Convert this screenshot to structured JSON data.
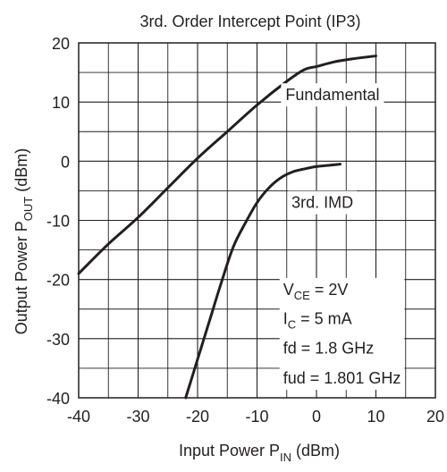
{
  "chart_data": {
    "type": "line",
    "title": "3rd. Order Intercept Point (IP3)",
    "xlabel": {
      "main": "Input Power   P",
      "sub": "IN",
      "unit": " (dBm)"
    },
    "ylabel": {
      "main": "Output Power   P",
      "sub": "OUT",
      "unit": " (dBm)"
    },
    "xlim": [
      -40,
      20
    ],
    "ylim": [
      -40,
      20
    ],
    "x_ticks": [
      -40,
      -30,
      -20,
      -10,
      0,
      10,
      20
    ],
    "y_ticks": [
      -40,
      -30,
      -20,
      -10,
      0,
      10,
      20
    ],
    "x_tick_labels": [
      "-40",
      "-30",
      "-20",
      "-10",
      "0",
      "10",
      "20"
    ],
    "y_tick_labels": [
      "-40",
      "-30",
      "-20",
      "-10",
      "0",
      "10",
      "20"
    ],
    "grid": true,
    "series": [
      {
        "name": "Fundamental",
        "x": [
          -40,
          -35,
          -30,
          -25,
          -20,
          -15,
          -10,
          -5,
          -2,
          0,
          3,
          6,
          10
        ],
        "y": [
          -19,
          -14,
          -9.5,
          -4.5,
          0.5,
          5,
          9.5,
          13.5,
          15.5,
          16,
          16.8,
          17.3,
          17.8
        ]
      },
      {
        "name": "3rd. IMD",
        "x": [
          -22,
          -20,
          -18,
          -16,
          -14,
          -12,
          -10,
          -8,
          -6,
          -4,
          -2,
          0,
          2,
          4
        ],
        "y": [
          -40,
          -33.5,
          -27,
          -20.5,
          -14.5,
          -10.5,
          -7,
          -4.5,
          -2.8,
          -1.8,
          -1.3,
          -0.9,
          -0.7,
          -0.5
        ]
      }
    ],
    "annotations": {
      "vce": {
        "main": "V",
        "sub": "CE",
        "rest": " = 2V"
      },
      "ic": {
        "main": "I",
        "sub": "C",
        "rest": " = 5 mA"
      },
      "fd": "fd = 1.8 GHz",
      "fud": "fud = 1.801 GHz"
    }
  }
}
